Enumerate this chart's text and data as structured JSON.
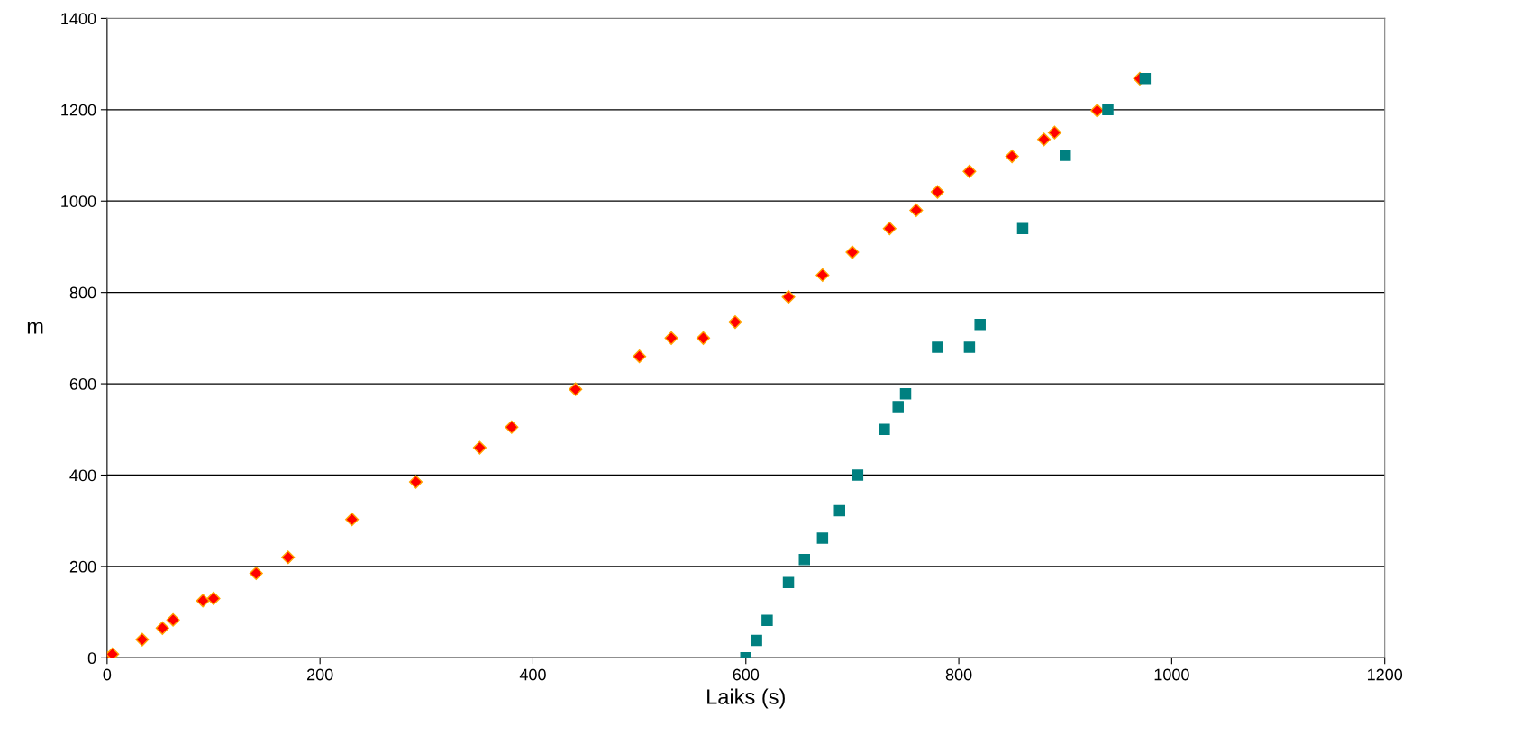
{
  "chart_data": {
    "type": "scatter",
    "xlabel": "Laiks (s)",
    "ylabel": "m",
    "xlim": [
      0,
      1200
    ],
    "xticks": [
      0,
      200,
      400,
      600,
      800,
      1000,
      1200
    ],
    "ylim": [
      0,
      1400
    ],
    "yticks": [
      0,
      200,
      400,
      600,
      800,
      1000,
      1200,
      1400
    ],
    "grid": "y",
    "legend": false,
    "series": [
      {
        "color": "#ff0000",
        "marker": "diamond",
        "x": [
          0,
          5,
          33,
          52,
          62,
          90,
          100,
          140,
          170,
          230,
          290,
          350,
          380,
          440,
          500,
          530,
          560,
          590,
          640,
          672,
          700,
          735,
          760,
          780,
          810,
          850,
          880,
          890,
          930,
          970
        ],
        "values": [
          0,
          8,
          40,
          65,
          83,
          125,
          130,
          185,
          220,
          303,
          385,
          460,
          505,
          588,
          660,
          700,
          700,
          735,
          790,
          838,
          888,
          940,
          980,
          1020,
          1065,
          1098,
          1135,
          1150,
          1198,
          1268
        ]
      },
      {
        "color": "#008080",
        "marker": "square",
        "x": [
          600,
          610,
          620,
          640,
          655,
          672,
          688,
          705,
          730,
          743,
          750,
          780,
          810,
          820,
          860,
          900,
          940,
          975
        ],
        "values": [
          0,
          38,
          82,
          165,
          215,
          262,
          322,
          400,
          500,
          550,
          578,
          680,
          680,
          730,
          940,
          1100,
          1200,
          1268
        ]
      }
    ]
  }
}
